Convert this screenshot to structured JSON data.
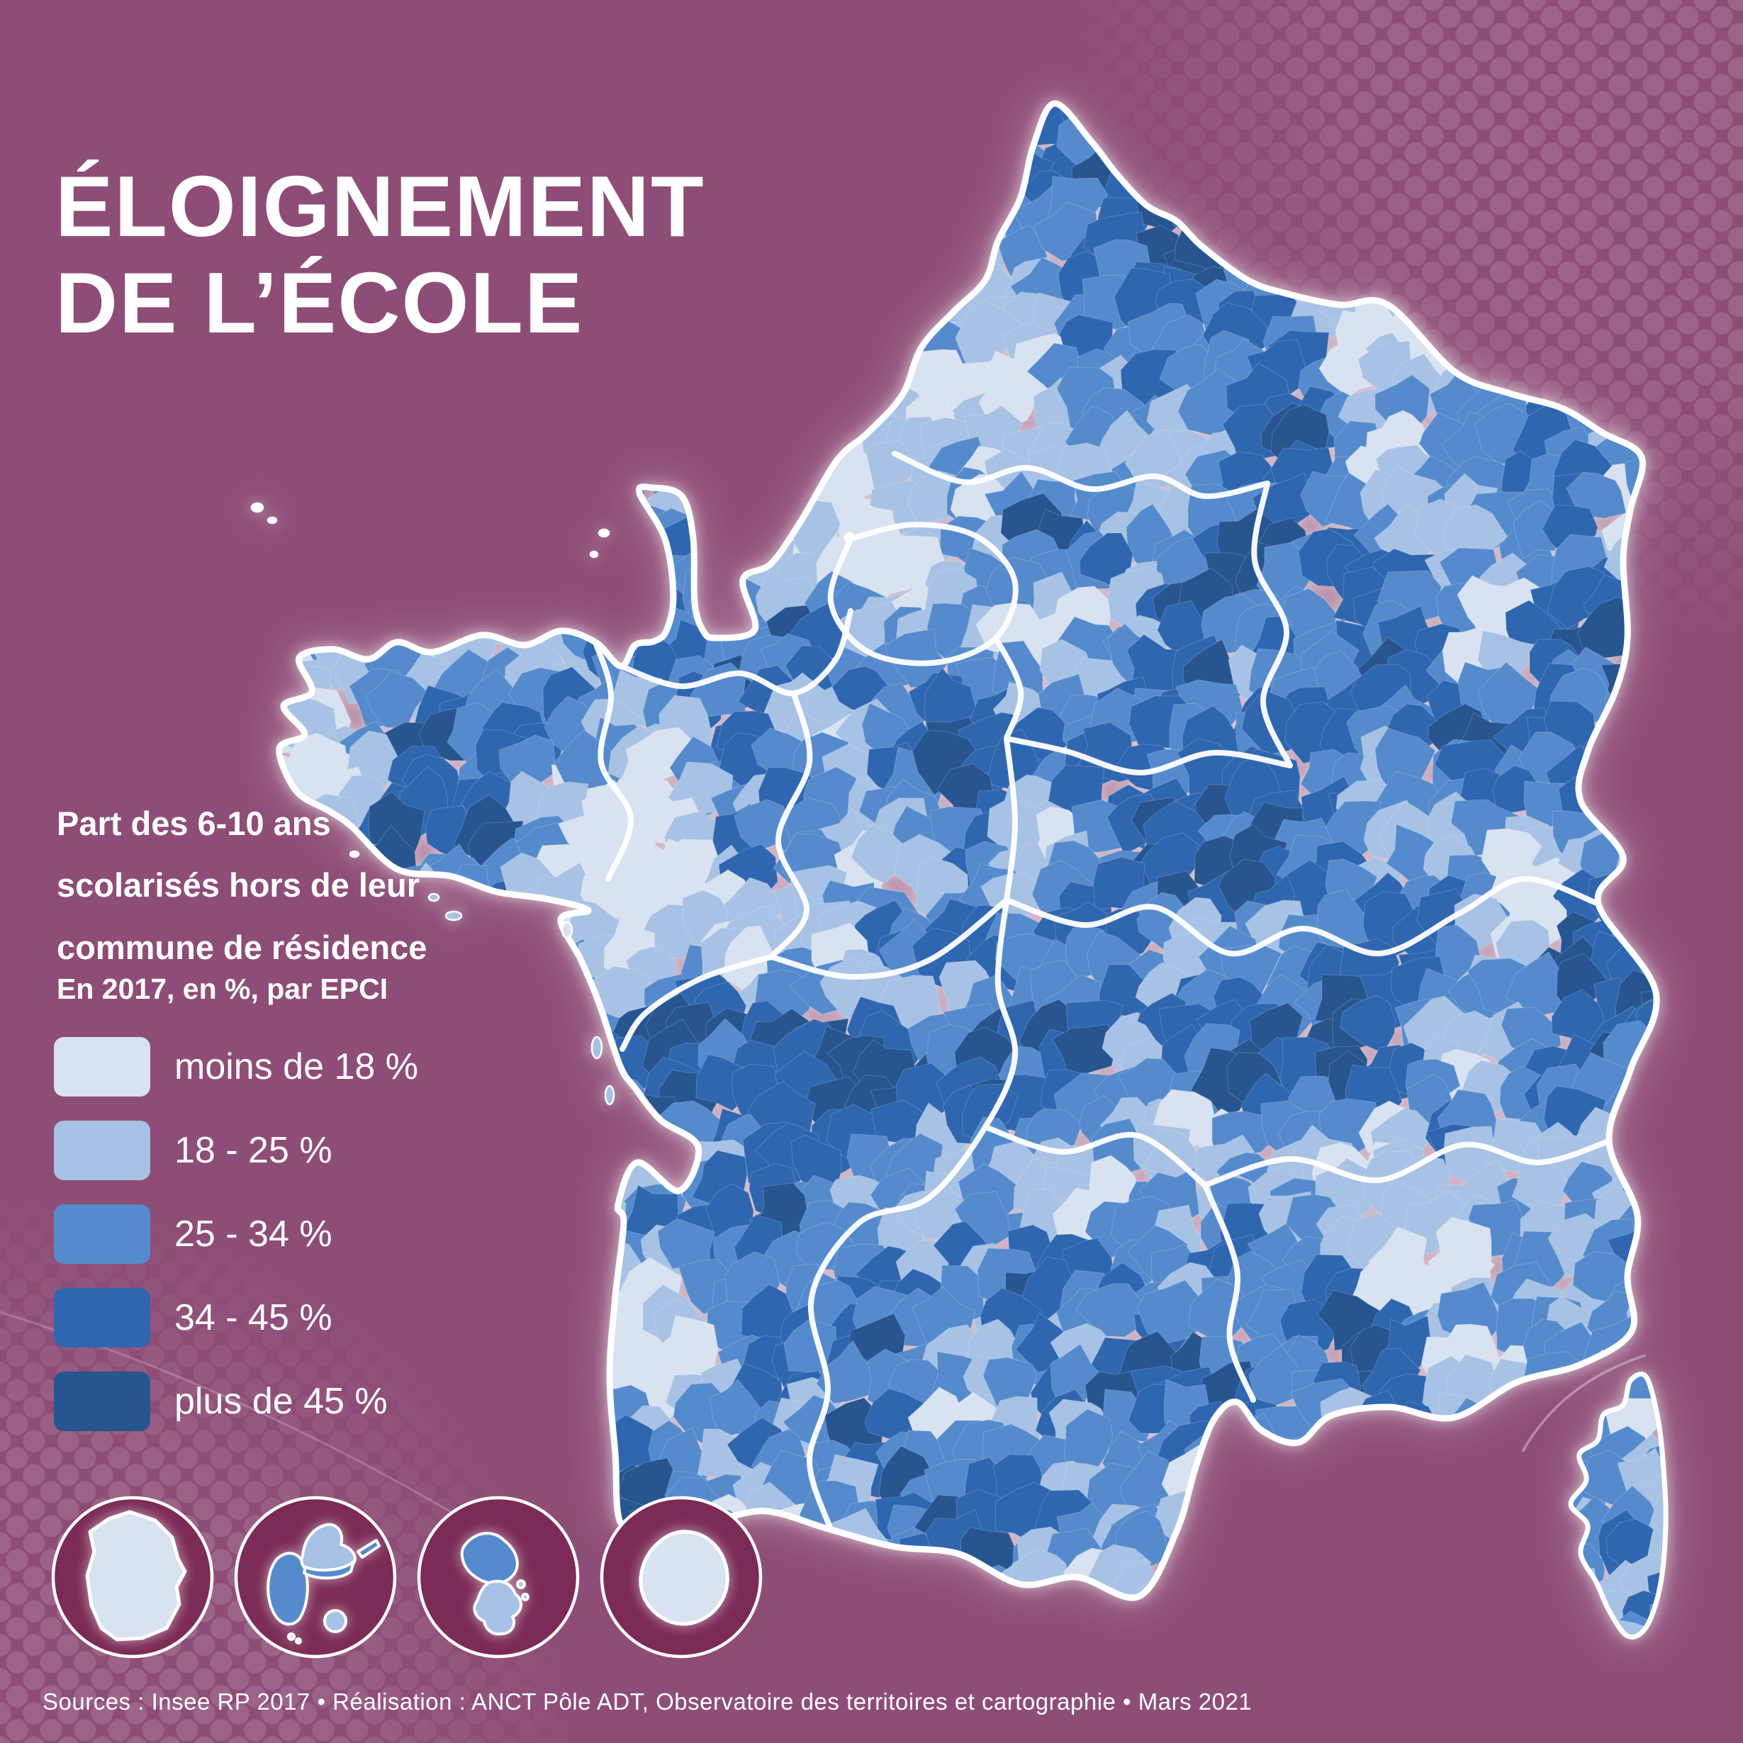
{
  "title": {
    "line1": "ÉLOIGNEMENT",
    "line2": "DE L’ÉCOLE"
  },
  "subtitle": {
    "lines": [
      "Part des 6-10 ans",
      "scolarisés hors de leur",
      "commune de résidence"
    ],
    "note": "En 2017, en %, par EPCI"
  },
  "legend": {
    "items": [
      {
        "label": "moins de 18 %",
        "color": "#d8e2f1"
      },
      {
        "label": "18 - 25 %",
        "color": "#a7c2e4"
      },
      {
        "label": "25 - 34 %",
        "color": "#558bcd"
      },
      {
        "label": "34 - 45 %",
        "color": "#2f66b0"
      },
      {
        "label": "plus de 45 %",
        "color": "#275590"
      }
    ]
  },
  "map": {
    "unit": "EPCI",
    "insets": [
      {
        "name": "guyane"
      },
      {
        "name": "guadeloupe"
      },
      {
        "name": "martinique"
      },
      {
        "name": "reunion"
      }
    ]
  },
  "colors": {
    "background": "#8e4d77",
    "inset_circle": "#7b2b55",
    "dot": "rgba(255,255,255,0.13)",
    "border": "#ffffff"
  },
  "source": "Sources : Insee RP 2017 • Réalisation : ANCT Pôle ADT, Observatoire des territoires et cartographie • Mars 2021"
}
